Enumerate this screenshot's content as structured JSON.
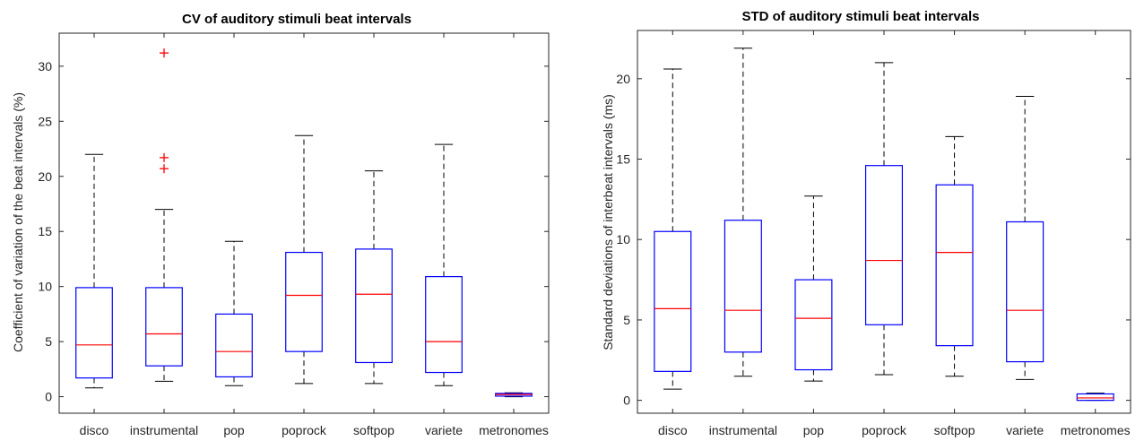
{
  "chart_data": [
    {
      "type": "box",
      "title": "CV of auditory stimuli beat intervals",
      "ylabel": "Coefficient of variation of the beat intervals (%)",
      "xlabel": "",
      "ylim": [
        -1.5,
        33
      ],
      "yticks": [
        0,
        5,
        10,
        15,
        20,
        25,
        30
      ],
      "categories": [
        "disco",
        "instrumental",
        "pop",
        "poprock",
        "softpop",
        "variete",
        "metronomes"
      ],
      "boxes": [
        {
          "whisker_low": 0.8,
          "q1": 1.7,
          "median": 4.7,
          "q3": 9.9,
          "whisker_high": 22.0,
          "outliers": []
        },
        {
          "whisker_low": 1.4,
          "q1": 2.8,
          "median": 5.7,
          "q3": 9.9,
          "whisker_high": 17.0,
          "outliers": [
            20.7,
            21.7,
            31.2
          ]
        },
        {
          "whisker_low": 1.0,
          "q1": 1.8,
          "median": 4.1,
          "q3": 7.5,
          "whisker_high": 14.1,
          "outliers": []
        },
        {
          "whisker_low": 1.2,
          "q1": 4.1,
          "median": 9.2,
          "q3": 13.1,
          "whisker_high": 23.7,
          "outliers": []
        },
        {
          "whisker_low": 1.2,
          "q1": 3.1,
          "median": 9.3,
          "q3": 13.4,
          "whisker_high": 20.5,
          "outliers": []
        },
        {
          "whisker_low": 1.0,
          "q1": 2.2,
          "median": 5.0,
          "q3": 10.9,
          "whisker_high": 22.9,
          "outliers": []
        },
        {
          "whisker_low": 0.0,
          "q1": 0.05,
          "median": 0.2,
          "q3": 0.3,
          "whisker_high": 0.35,
          "outliers": []
        }
      ],
      "colors": {
        "box": "#0000ff",
        "median": "#ff0000",
        "whisker": "#000000",
        "outlier": "#ff0000"
      }
    },
    {
      "type": "box",
      "title": "STD of auditory stimuli beat intervals",
      "ylabel": "Standard deviations of interbeat intervals (ms)",
      "xlabel": "",
      "ylim": [
        -0.8,
        23
      ],
      "yticks": [
        0,
        5,
        10,
        15,
        20
      ],
      "categories": [
        "disco",
        "instrumental",
        "pop",
        "poprock",
        "softpop",
        "variete",
        "metronomes"
      ],
      "boxes": [
        {
          "whisker_low": 0.7,
          "q1": 1.8,
          "median": 5.7,
          "q3": 10.5,
          "whisker_high": 20.6,
          "outliers": []
        },
        {
          "whisker_low": 1.5,
          "q1": 3.0,
          "median": 5.6,
          "q3": 11.2,
          "whisker_high": 21.9,
          "outliers": []
        },
        {
          "whisker_low": 1.2,
          "q1": 1.9,
          "median": 5.1,
          "q3": 7.5,
          "whisker_high": 12.7,
          "outliers": []
        },
        {
          "whisker_low": 1.6,
          "q1": 4.7,
          "median": 8.7,
          "q3": 14.6,
          "whisker_high": 21.0,
          "outliers": []
        },
        {
          "whisker_low": 1.5,
          "q1": 3.4,
          "median": 9.2,
          "q3": 13.4,
          "whisker_high": 16.4,
          "outliers": []
        },
        {
          "whisker_low": 1.3,
          "q1": 2.4,
          "median": 5.6,
          "q3": 11.1,
          "whisker_high": 18.9,
          "outliers": []
        },
        {
          "whisker_low": 0.0,
          "q1": 0.0,
          "median": 0.15,
          "q3": 0.4,
          "whisker_high": 0.45,
          "outliers": []
        }
      ],
      "colors": {
        "box": "#0000ff",
        "median": "#ff0000",
        "whisker": "#000000",
        "outlier": "#ff0000"
      }
    }
  ]
}
